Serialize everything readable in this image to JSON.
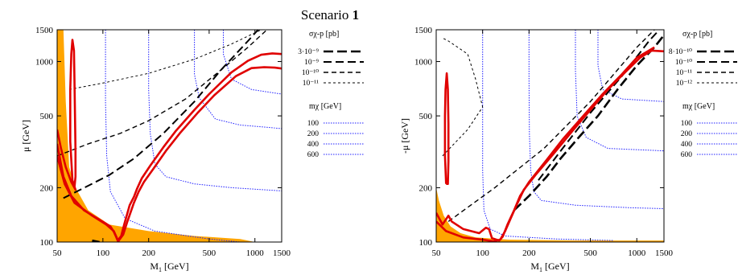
{
  "figure": {
    "title_prefix": "Scenario ",
    "title_number": "1"
  },
  "colors": {
    "excluded_region": "#ffa500",
    "relic_contour": "#e00000",
    "mass_contour": "#2020ff",
    "sigma_contour": "#000000"
  },
  "chart_data": [
    {
      "type": "line",
      "panel": "left",
      "xlabel_main": "M",
      "xlabel_sub": "1",
      "xlabel_unit": "[GeV]",
      "ylabel": "μ  [GeV]",
      "xscale": "log",
      "yscale": "log",
      "xlim": [
        50,
        1500
      ],
      "ylim": [
        100,
        1500
      ],
      "x_ticks": [
        50,
        100,
        200,
        500,
        1000,
        1500
      ],
      "y_ticks": [
        100,
        200,
        500,
        1000,
        1500
      ],
      "sigma_legend_title": "σχ-p [pb]",
      "mass_legend_title": "mχ [GeV]",
      "sigma_legend": [
        {
          "label": "3·10⁻⁹",
          "style": "thick-long-dash"
        },
        {
          "label": "10⁻⁹",
          "style": "long-dash"
        },
        {
          "label": "10⁻¹⁰",
          "style": "dash"
        },
        {
          "label": "10⁻¹¹",
          "style": "short-dash"
        }
      ],
      "mass_legend": [
        {
          "label": "100",
          "style": "dotted-blue"
        },
        {
          "label": "200",
          "style": "dotted-blue"
        },
        {
          "label": "400",
          "style": "dotted-blue"
        },
        {
          "label": "600",
          "style": "dotted-blue"
        }
      ],
      "excluded_region": [
        [
          50,
          100
        ],
        [
          50,
          1500
        ],
        [
          55,
          1500
        ],
        [
          57,
          600
        ],
        [
          60,
          260
        ],
        [
          66,
          200
        ],
        [
          80,
          150
        ],
        [
          110,
          125
        ],
        [
          200,
          115
        ],
        [
          400,
          108
        ],
        [
          800,
          104
        ],
        [
          1000,
          100
        ]
      ],
      "relic_contours": [
        [
          [
            50,
            420
          ],
          [
            53,
            330
          ],
          [
            57,
            260
          ],
          [
            62,
            215
          ],
          [
            66,
            195
          ],
          [
            63,
            220
          ],
          [
            61,
            360
          ],
          [
            61,
            700
          ],
          [
            62,
            1100
          ],
          [
            63,
            1320
          ],
          [
            64.5,
            1150
          ],
          [
            65,
            800
          ],
          [
            65.5,
            500
          ],
          [
            66,
            320
          ],
          [
            66,
            230
          ],
          [
            65,
            200
          ],
          [
            62,
            215
          ]
        ],
        [
          [
            50,
            350
          ],
          [
            55,
            230
          ],
          [
            62,
            180
          ],
          [
            75,
            150
          ],
          [
            95,
            133
          ],
          [
            112,
            122
          ],
          [
            118,
            114
          ],
          [
            122,
            107
          ],
          [
            125,
            102
          ],
          [
            132,
            108
          ],
          [
            138,
            125
          ],
          [
            150,
            160
          ],
          [
            160,
            178
          ],
          [
            168,
            198
          ],
          [
            180,
            225
          ],
          [
            205,
            265
          ],
          [
            250,
            335
          ],
          [
            300,
            410
          ],
          [
            400,
            540
          ],
          [
            500,
            660
          ],
          [
            700,
            870
          ],
          [
            900,
            1010
          ],
          [
            1100,
            1090
          ],
          [
            1300,
            1110
          ],
          [
            1500,
            1100
          ]
        ],
        [
          [
            50,
            300
          ],
          [
            56,
            210
          ],
          [
            65,
            165
          ],
          [
            85,
            140
          ],
          [
            105,
            125
          ],
          [
            118,
            115
          ],
          [
            127,
            100
          ]
        ],
        [
          [
            125,
            100
          ],
          [
            136,
            110
          ],
          [
            145,
            130
          ],
          [
            160,
            165
          ],
          [
            172,
            190
          ],
          [
            186,
            215
          ],
          [
            215,
            255
          ],
          [
            260,
            320
          ],
          [
            320,
            400
          ],
          [
            420,
            520
          ],
          [
            540,
            650
          ],
          [
            750,
            830
          ],
          [
            950,
            920
          ],
          [
            1150,
            930
          ],
          [
            1350,
            925
          ],
          [
            1500,
            915
          ]
        ]
      ],
      "mass_contours": [
        {
          "mass": 100,
          "points": [
            [
              104,
              1500
            ],
            [
              104,
              600
            ],
            [
              106,
              300
            ],
            [
              112,
              190
            ],
            [
              140,
              135
            ],
            [
              220,
              115
            ],
            [
              500,
              104
            ],
            [
              800,
              100
            ]
          ]
        },
        {
          "mass": 200,
          "points": [
            [
              200,
              1500
            ],
            [
              200,
              700
            ],
            [
              205,
              400
            ],
            [
              220,
              270
            ],
            [
              260,
              230
            ],
            [
              400,
              210
            ],
            [
              700,
              200
            ],
            [
              1500,
              192
            ]
          ]
        },
        {
          "mass": 400,
          "points": [
            [
              400,
              1500
            ],
            [
              400,
              850
            ],
            [
              430,
              630
            ],
            [
              550,
              480
            ],
            [
              800,
              445
            ],
            [
              1500,
              425
            ]
          ]
        },
        {
          "mass": 600,
          "points": [
            [
              620,
              1500
            ],
            [
              620,
              1100
            ],
            [
              700,
              800
            ],
            [
              950,
              700
            ],
            [
              1500,
              660
            ]
          ]
        }
      ],
      "sigma_contours": [
        {
          "label": "3·10⁻⁹",
          "points": [
            [
              85,
              102
            ],
            [
              95,
              100
            ]
          ]
        },
        {
          "label": "10⁻⁹",
          "points": [
            [
              55,
              175
            ],
            [
              80,
              205
            ],
            [
              110,
              235
            ],
            [
              160,
              290
            ],
            [
              250,
              400
            ],
            [
              400,
              600
            ],
            [
              600,
              900
            ],
            [
              900,
              1300
            ],
            [
              1050,
              1500
            ]
          ]
        },
        {
          "label": "10⁻¹⁰",
          "points": [
            [
              50,
              300
            ],
            [
              80,
              350
            ],
            [
              130,
              400
            ],
            [
              200,
              470
            ],
            [
              350,
              620
            ],
            [
              600,
              900
            ],
            [
              900,
              1200
            ],
            [
              1200,
              1500
            ]
          ]
        },
        {
          "label": "10⁻¹¹",
          "points": [
            [
              60,
              700
            ],
            [
              100,
              760
            ],
            [
              200,
              860
            ],
            [
              400,
              1030
            ],
            [
              700,
              1250
            ],
            [
              1100,
              1500
            ]
          ]
        }
      ]
    },
    {
      "type": "line",
      "panel": "right",
      "xlabel_main": "M",
      "xlabel_sub": "1",
      "xlabel_unit": "[GeV]",
      "ylabel": "-μ  [GeV]",
      "xscale": "log",
      "yscale": "log",
      "xlim": [
        50,
        1500
      ],
      "ylim": [
        100,
        1500
      ],
      "x_ticks": [
        50,
        100,
        200,
        500,
        1000,
        1500
      ],
      "y_ticks": [
        100,
        200,
        500,
        1000,
        1500
      ],
      "sigma_legend_title": "σχ-p [pb]",
      "mass_legend_title": "mχ [GeV]",
      "sigma_legend": [
        {
          "label": "8·10⁻¹⁰",
          "style": "thick-long-dash"
        },
        {
          "label": "10⁻¹⁰",
          "style": "long-dash"
        },
        {
          "label": "10⁻¹¹",
          "style": "dash"
        },
        {
          "label": "10⁻¹²",
          "style": "short-dash"
        }
      ],
      "mass_legend": [
        {
          "label": "100",
          "style": "dotted-blue"
        },
        {
          "label": "200",
          "style": "dotted-blue"
        },
        {
          "label": "400",
          "style": "dotted-blue"
        },
        {
          "label": "600",
          "style": "dotted-blue"
        }
      ],
      "excluded_region": [
        [
          50,
          100
        ],
        [
          50,
          200
        ],
        [
          52,
          170
        ],
        [
          56,
          140
        ],
        [
          62,
          122
        ],
        [
          72,
          112
        ],
        [
          90,
          106
        ],
        [
          150,
          103
        ],
        [
          400,
          102
        ],
        [
          1500,
          102
        ],
        [
          1500,
          100
        ]
      ],
      "relic_contours": [
        [
          [
            58,
            210
          ],
          [
            57,
            300
          ],
          [
            57,
            500
          ],
          [
            57.5,
            700
          ],
          [
            58.5,
            860
          ],
          [
            59.5,
            700
          ],
          [
            60,
            450
          ],
          [
            60,
            280
          ],
          [
            59.5,
            210
          ],
          [
            58,
            210
          ]
        ],
        [
          [
            50,
            145
          ],
          [
            55,
            125
          ],
          [
            60,
            140
          ],
          [
            63,
            130
          ],
          [
            75,
            118
          ],
          [
            95,
            112
          ],
          [
            105,
            120
          ],
          [
            110,
            118
          ],
          [
            115,
            105
          ],
          [
            128,
            102
          ],
          [
            135,
            107
          ],
          [
            145,
            125
          ],
          [
            160,
            150
          ],
          [
            175,
            180
          ],
          [
            200,
            215
          ],
          [
            260,
            285
          ],
          [
            330,
            370
          ],
          [
            450,
            500
          ],
          [
            600,
            660
          ],
          [
            800,
            850
          ],
          [
            1000,
            1050
          ],
          [
            1200,
            1150
          ],
          [
            1300,
            1200
          ]
        ],
        [
          [
            50,
            130
          ],
          [
            58,
            115
          ],
          [
            75,
            106
          ],
          [
            100,
            103
          ],
          [
            118,
            101
          ],
          [
            130,
            103
          ],
          [
            140,
            115
          ],
          [
            152,
            135
          ],
          [
            166,
            160
          ],
          [
            185,
            195
          ],
          [
            220,
            235
          ],
          [
            290,
            310
          ],
          [
            380,
            410
          ],
          [
            500,
            540
          ],
          [
            650,
            700
          ],
          [
            850,
            880
          ],
          [
            1050,
            1050
          ],
          [
            1250,
            1150
          ],
          [
            1500,
            1140
          ]
        ]
      ],
      "mass_contours": [
        {
          "mass": 100,
          "points": [
            [
              100,
              1500
            ],
            [
              100,
              500
            ],
            [
              100,
              250
            ],
            [
              102,
              150
            ],
            [
              112,
              118
            ],
            [
              140,
              108
            ],
            [
              300,
              104
            ],
            [
              700,
              102
            ]
          ]
        },
        {
          "mass": 200,
          "points": [
            [
              200,
              1500
            ],
            [
              200,
              800
            ],
            [
              201,
              400
            ],
            [
              205,
              250
            ],
            [
              215,
              190
            ],
            [
              240,
              170
            ],
            [
              400,
              160
            ],
            [
              900,
              155
            ],
            [
              1500,
              153
            ]
          ]
        },
        {
          "mass": 400,
          "points": [
            [
              400,
              1500
            ],
            [
              400,
              900
            ],
            [
              410,
              500
            ],
            [
              470,
              380
            ],
            [
              650,
              330
            ],
            [
              1500,
              320
            ]
          ]
        },
        {
          "mass": 600,
          "points": [
            [
              560,
              1500
            ],
            [
              560,
              950
            ],
            [
              600,
              700
            ],
            [
              800,
              620
            ],
            [
              1500,
              600
            ]
          ]
        }
      ],
      "sigma_contours": [
        {
          "label": "8·10⁻¹⁰",
          "points": [
            [
              160,
              150
            ],
            [
              200,
              180
            ],
            [
              260,
              230
            ],
            [
              320,
              290
            ],
            [
              420,
              380
            ],
            [
              560,
              500
            ],
            [
              750,
              700
            ],
            [
              1000,
              950
            ],
            [
              1300,
              1200
            ],
            [
              1500,
              1400
            ]
          ]
        },
        {
          "label": "10⁻¹⁰",
          "points": [
            [
              230,
              220
            ],
            [
              330,
              330
            ],
            [
              500,
              520
            ],
            [
              800,
              830
            ],
            [
              1200,
              1300
            ],
            [
              1400,
              1500
            ]
          ]
        },
        {
          "label": "10⁻¹¹",
          "points": [
            [
              60,
              130
            ],
            [
              120,
              200
            ],
            [
              250,
              330
            ],
            [
              500,
              600
            ],
            [
              1000,
              1200
            ],
            [
              1300,
              1500
            ]
          ]
        },
        {
          "label": "10⁻¹²",
          "points": [
            [
              55,
              300
            ],
            [
              80,
              420
            ],
            [
              100,
              560
            ],
            [
              90,
              800
            ],
            [
              80,
              1100
            ],
            [
              60,
              1300
            ],
            [
              55,
              1350
            ]
          ]
        }
      ]
    }
  ]
}
